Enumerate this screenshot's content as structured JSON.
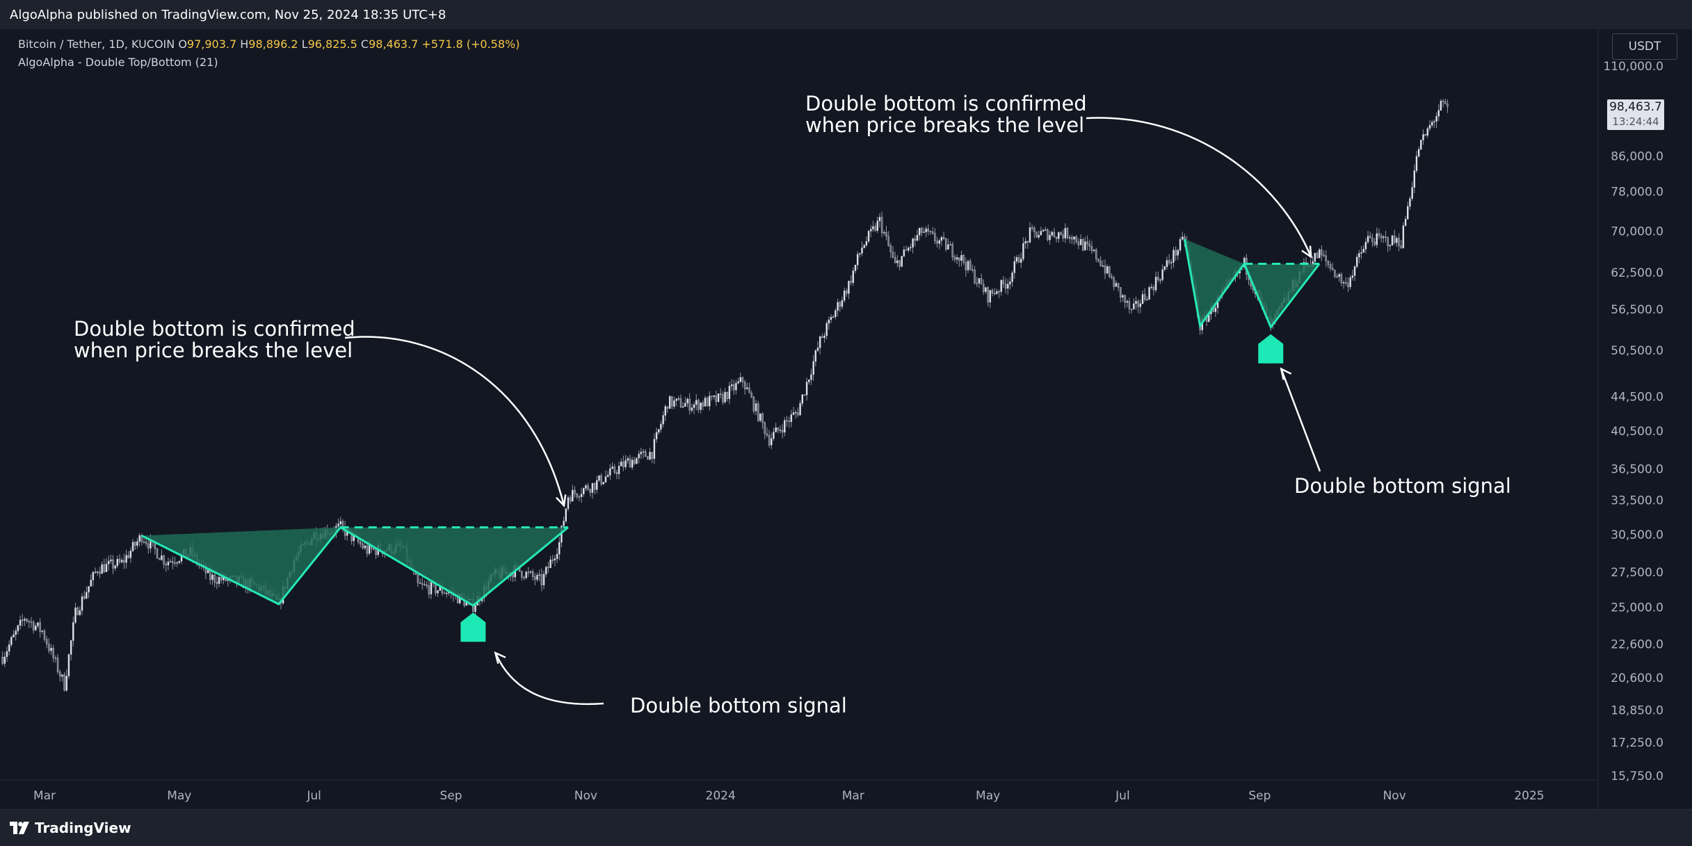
{
  "header": {
    "published_by": "AlgoAlpha published on TradingView.com, Nov 25, 2024 18:35 UTC+8"
  },
  "legend": {
    "symbol": "Bitcoin / Tether, 1D, KUCOIN",
    "open_label": "O",
    "open": "97,903.7",
    "high_label": "H",
    "high": "98,896.2",
    "low_label": "L",
    "low": "96,825.5",
    "close_label": "C",
    "close": "98,463.7",
    "change": "+571.8 (+0.58%)",
    "indicator": "AlgoAlpha - Double Top/Bottom (21)"
  },
  "currency_button": "USDT",
  "last_price": {
    "price": "98,463.7",
    "countdown": "13:24:44"
  },
  "annotations": {
    "confirm_left": [
      "Double bottom is confirmed",
      "when price breaks the level"
    ],
    "confirm_right": [
      "Double bottom is confirmed",
      "when price breaks the level"
    ],
    "signal_left": "Double bottom signal",
    "signal_right": "Double bottom signal"
  },
  "footer": {
    "brand": "TradingView"
  },
  "colors": {
    "background": "#131722",
    "candle": "#e0e3eb",
    "pattern_fill": "#1f6b56",
    "pattern_line": "#25e8b5",
    "signal_marker": "#1de9b6",
    "annotation_text": "#ffffff"
  },
  "chart_data": {
    "type": "line",
    "title": "",
    "xlabel": "",
    "ylabel": "",
    "yscale": "log",
    "ylim": [
      15750,
      114000
    ],
    "y_ticks": [
      "110,000.0",
      "86,000.0",
      "78,000.0",
      "70,000.0",
      "62,500.0",
      "56,500.0",
      "50,500.0",
      "44,500.0",
      "40,500.0",
      "36,500.0",
      "33,500.0",
      "30,500.0",
      "27,500.0",
      "25,000.0",
      "22,600.0",
      "20,600.0",
      "18,850.0",
      "17,250.0",
      "15,750.0"
    ],
    "x_ticks": [
      "Mar",
      "May",
      "Jul",
      "Sep",
      "Nov",
      "2024",
      "Mar",
      "May",
      "Jul",
      "Sep",
      "Nov",
      "2025"
    ],
    "x_tick_dates": [
      "2023-03-01",
      "2023-05-01",
      "2023-07-01",
      "2023-09-01",
      "2023-11-01",
      "2024-01-01",
      "2024-03-01",
      "2024-05-01",
      "2024-07-01",
      "2024-09-01",
      "2024-11-01",
      "2025-01-01"
    ],
    "series": [
      {
        "values_note": "",
        "points": [
          [
            "2023-02-10",
            21800
          ],
          [
            "2023-02-20",
            24300
          ],
          [
            "2023-02-28",
            23400
          ],
          [
            "2023-03-10",
            20200
          ],
          [
            "2023-03-15",
            24600
          ],
          [
            "2023-03-25",
            27800
          ],
          [
            "2023-04-05",
            28200
          ],
          [
            "2023-04-14",
            30400
          ],
          [
            "2023-04-25",
            28300
          ],
          [
            "2023-05-06",
            29000
          ],
          [
            "2023-05-15",
            27100
          ],
          [
            "2023-05-28",
            26800
          ],
          [
            "2023-06-06",
            26400
          ],
          [
            "2023-06-15",
            25200
          ],
          [
            "2023-06-22",
            28500
          ],
          [
            "2023-07-01",
            30500
          ],
          [
            "2023-07-13",
            31100
          ],
          [
            "2023-07-25",
            29200
          ],
          [
            "2023-08-10",
            29400
          ],
          [
            "2023-08-17",
            26500
          ],
          [
            "2023-08-30",
            26100
          ],
          [
            "2023-09-11",
            25100
          ],
          [
            "2023-09-20",
            27200
          ],
          [
            "2023-10-01",
            27700
          ],
          [
            "2023-10-12",
            26800
          ],
          [
            "2023-10-20",
            29800
          ],
          [
            "2023-10-24",
            33900
          ],
          [
            "2023-11-05",
            35000
          ],
          [
            "2023-11-20",
            37200
          ],
          [
            "2023-12-01",
            38200
          ],
          [
            "2023-12-08",
            43800
          ],
          [
            "2023-12-20",
            43500
          ],
          [
            "2024-01-01",
            44200
          ],
          [
            "2024-01-11",
            46500
          ],
          [
            "2024-01-23",
            39600
          ],
          [
            "2024-02-05",
            42800
          ],
          [
            "2024-02-15",
            51800
          ],
          [
            "2024-02-28",
            60500
          ],
          [
            "2024-03-05",
            67000
          ],
          [
            "2024-03-13",
            72000
          ],
          [
            "2024-03-20",
            63600
          ],
          [
            "2024-04-01",
            70000
          ],
          [
            "2024-04-13",
            67000
          ],
          [
            "2024-04-20",
            64500
          ],
          [
            "2024-05-01",
            58600
          ],
          [
            "2024-05-10",
            61000
          ],
          [
            "2024-05-20",
            69500
          ],
          [
            "2024-06-07",
            69500
          ],
          [
            "2024-06-20",
            65000
          ],
          [
            "2024-07-05",
            56000
          ],
          [
            "2024-07-14",
            60000
          ],
          [
            "2024-07-29",
            68500
          ],
          [
            "2024-08-05",
            54000
          ],
          [
            "2024-08-25",
            64000
          ],
          [
            "2024-09-06",
            53800
          ],
          [
            "2024-09-20",
            63000
          ],
          [
            "2024-09-28",
            65800
          ],
          [
            "2024-10-10",
            60300
          ],
          [
            "2024-10-20",
            68500
          ],
          [
            "2024-11-04",
            68000
          ],
          [
            "2024-11-12",
            88000
          ],
          [
            "2024-11-22",
            98500
          ],
          [
            "2024-11-25",
            98463.7
          ]
        ]
      }
    ],
    "double_bottoms": [
      {
        "first_top": [
          "2023-04-14",
          30400
        ],
        "first_bottom": [
          "2023-06-15",
          25200
        ],
        "second_top": [
          "2023-07-13",
          31100
        ],
        "second_bottom": [
          "2023-09-11",
          25100
        ],
        "neckline": 31100,
        "breakout": [
          "2023-10-24",
          33900
        ]
      },
      {
        "first_top": [
          "2024-07-29",
          68500
        ],
        "first_bottom": [
          "2024-08-05",
          54000
        ],
        "second_top": [
          "2024-08-25",
          64000
        ],
        "second_bottom": [
          "2024-09-06",
          53800
        ],
        "neckline": 64000,
        "breakout": [
          "2024-09-28",
          65800
        ]
      }
    ],
    "signals": [
      {
        "type": "double bottom",
        "date": "2023-09-11"
      },
      {
        "type": "double bottom",
        "date": "2024-09-06"
      }
    ],
    "last_price": 98463.7
  }
}
